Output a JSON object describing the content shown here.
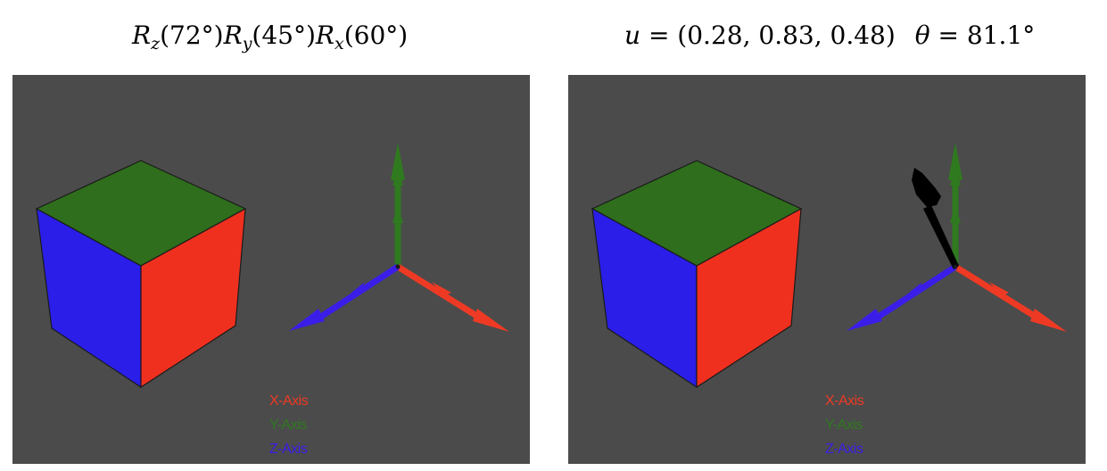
{
  "panels": [
    {
      "title": {
        "r1": "R",
        "s1": "z",
        "a1": "(72°)",
        "r2": "R",
        "s2": "y",
        "a2": "(45°)",
        "r3": "R",
        "s3": "x",
        "a3": "(60°)"
      },
      "legend": {
        "x": "X-Axis",
        "y": "Y-Axis",
        "z": "Z-Axis"
      },
      "show_rotation_axis": false
    },
    {
      "title": {
        "u_var": "u",
        "u_eq": " = (0.28, 0.83, 0.48)",
        "theta_var": "θ",
        "theta_eq": " = 81.1°"
      },
      "legend": {
        "x": "X-Axis",
        "y": "Y-Axis",
        "z": "Z-Axis"
      },
      "show_rotation_axis": true
    }
  ],
  "colors": {
    "background": "#4b4b4b",
    "face_top": "#2f6e1c",
    "face_left": "#2a1ee8",
    "face_right": "#f0301f",
    "x_axis": "#ee3a24",
    "y_axis": "#2f7a1f",
    "z_axis": "#3a1ee8",
    "rotation_axis": "#000000"
  }
}
